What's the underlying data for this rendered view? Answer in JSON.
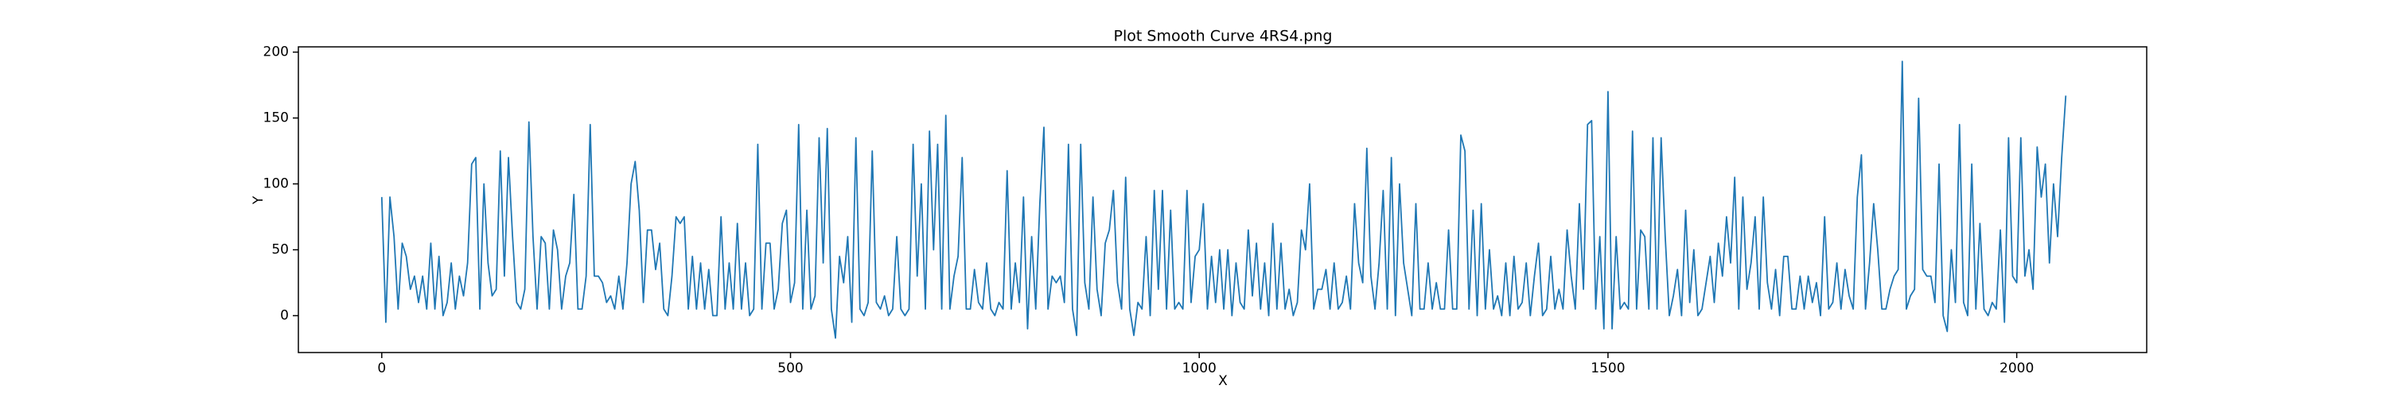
{
  "chart_data": {
    "type": "line",
    "title": "Plot Smooth Curve 4RS4.png",
    "x_label": "X",
    "y_label": "Y",
    "color": "#1f77b4",
    "xlim": [
      -102,
      2159
    ],
    "ylim": [
      -28,
      204
    ],
    "xticks": [
      0,
      500,
      1000,
      1500,
      2000
    ],
    "yticks": [
      0,
      50,
      100,
      150,
      200
    ],
    "x": [
      0,
      5,
      10,
      15,
      20,
      25,
      30,
      35,
      40,
      45,
      50,
      55,
      60,
      65,
      70,
      75,
      80,
      85,
      90,
      95,
      100,
      105,
      110,
      115,
      120,
      125,
      130,
      135,
      140,
      145,
      150,
      155,
      160,
      165,
      170,
      175,
      180,
      185,
      190,
      195,
      200,
      205,
      210,
      215,
      220,
      225,
      230,
      235,
      240,
      245,
      250,
      255,
      260,
      265,
      270,
      275,
      280,
      285,
      290,
      295,
      300,
      305,
      310,
      315,
      320,
      325,
      330,
      335,
      340,
      345,
      350,
      355,
      360,
      365,
      370,
      375,
      380,
      385,
      390,
      395,
      400,
      405,
      410,
      415,
      420,
      425,
      430,
      435,
      440,
      445,
      450,
      455,
      460,
      465,
      470,
      475,
      480,
      485,
      490,
      495,
      500,
      505,
      510,
      515,
      520,
      525,
      530,
      535,
      540,
      545,
      550,
      555,
      560,
      565,
      570,
      575,
      580,
      585,
      590,
      595,
      600,
      605,
      610,
      615,
      620,
      625,
      630,
      635,
      640,
      645,
      650,
      655,
      660,
      665,
      670,
      675,
      680,
      685,
      690,
      695,
      700,
      705,
      710,
      715,
      720,
      725,
      730,
      735,
      740,
      745,
      750,
      755,
      760,
      765,
      770,
      775,
      780,
      785,
      790,
      795,
      800,
      805,
      810,
      815,
      820,
      825,
      830,
      835,
      840,
      845,
      850,
      855,
      860,
      865,
      870,
      875,
      880,
      885,
      890,
      895,
      900,
      905,
      910,
      915,
      920,
      925,
      930,
      935,
      940,
      945,
      950,
      955,
      960,
      965,
      970,
      975,
      980,
      985,
      990,
      995,
      1000,
      1005,
      1010,
      1015,
      1020,
      1025,
      1030,
      1035,
      1040,
      1045,
      1050,
      1055,
      1060,
      1065,
      1070,
      1075,
      1080,
      1085,
      1090,
      1095,
      1100,
      1105,
      1110,
      1115,
      1120,
      1125,
      1130,
      1135,
      1140,
      1145,
      1150,
      1155,
      1160,
      1165,
      1170,
      1175,
      1180,
      1185,
      1190,
      1195,
      1200,
      1205,
      1210,
      1215,
      1220,
      1225,
      1230,
      1235,
      1240,
      1245,
      1250,
      1255,
      1260,
      1265,
      1270,
      1275,
      1280,
      1285,
      1290,
      1295,
      1300,
      1305,
      1310,
      1315,
      1320,
      1325,
      1330,
      1335,
      1340,
      1345,
      1350,
      1355,
      1360,
      1365,
      1370,
      1375,
      1380,
      1385,
      1390,
      1395,
      1400,
      1405,
      1410,
      1415,
      1420,
      1425,
      1430,
      1435,
      1440,
      1445,
      1450,
      1455,
      1460,
      1465,
      1470,
      1475,
      1480,
      1485,
      1490,
      1495,
      1500,
      1505,
      1510,
      1515,
      1520,
      1525,
      1530,
      1535,
      1540,
      1545,
      1550,
      1555,
      1560,
      1565,
      1570,
      1575,
      1580,
      1585,
      1590,
      1595,
      1600,
      1605,
      1610,
      1615,
      1620,
      1625,
      1630,
      1635,
      1640,
      1645,
      1650,
      1655,
      1660,
      1665,
      1670,
      1675,
      1680,
      1685,
      1690,
      1695,
      1700,
      1705,
      1710,
      1715,
      1720,
      1725,
      1730,
      1735,
      1740,
      1745,
      1750,
      1755,
      1760,
      1765,
      1770,
      1775,
      1780,
      1785,
      1790,
      1795,
      1800,
      1805,
      1810,
      1815,
      1820,
      1825,
      1830,
      1835,
      1840,
      1845,
      1850,
      1855,
      1860,
      1865,
      1870,
      1875,
      1880,
      1885,
      1890,
      1895,
      1900,
      1905,
      1910,
      1915,
      1920,
      1925,
      1930,
      1935,
      1940,
      1945,
      1950,
      1955,
      1960,
      1965,
      1970,
      1975,
      1980,
      1985,
      1990,
      1995,
      2000,
      2005,
      2010,
      2015,
      2020,
      2025,
      2030,
      2035,
      2040,
      2045,
      2050,
      2055,
      2060
    ],
    "values": [
      90,
      -5,
      90,
      60,
      5,
      55,
      45,
      20,
      30,
      10,
      30,
      5,
      55,
      5,
      45,
      0,
      10,
      40,
      5,
      30,
      15,
      40,
      115,
      120,
      5,
      100,
      40,
      15,
      20,
      125,
      30,
      120,
      60,
      10,
      5,
      20,
      147,
      60,
      5,
      60,
      55,
      5,
      65,
      50,
      5,
      30,
      40,
      92,
      5,
      5,
      30,
      145,
      30,
      30,
      25,
      10,
      15,
      5,
      30,
      5,
      40,
      100,
      117,
      80,
      10,
      65,
      65,
      35,
      55,
      5,
      0,
      30,
      75,
      70,
      75,
      5,
      45,
      5,
      40,
      5,
      35,
      0,
      0,
      75,
      5,
      40,
      5,
      70,
      5,
      40,
      0,
      5,
      130,
      5,
      55,
      55,
      5,
      20,
      70,
      80,
      10,
      25,
      145,
      5,
      80,
      5,
      15,
      135,
      40,
      142,
      5,
      -17,
      45,
      25,
      60,
      -5,
      135,
      5,
      0,
      10,
      125,
      10,
      5,
      15,
      0,
      5,
      60,
      5,
      0,
      5,
      130,
      30,
      100,
      5,
      140,
      50,
      130,
      5,
      152,
      5,
      30,
      45,
      120,
      5,
      5,
      35,
      10,
      5,
      40,
      5,
      0,
      10,
      5,
      110,
      5,
      40,
      10,
      90,
      -10,
      60,
      5,
      85,
      143,
      5,
      30,
      25,
      30,
      10,
      130,
      5,
      -15,
      130,
      25,
      5,
      90,
      20,
      0,
      55,
      65,
      95,
      25,
      5,
      105,
      5,
      -15,
      10,
      5,
      60,
      0,
      95,
      20,
      95,
      5,
      80,
      5,
      10,
      5,
      95,
      10,
      45,
      50,
      85,
      5,
      45,
      10,
      50,
      5,
      50,
      0,
      40,
      10,
      5,
      65,
      15,
      55,
      5,
      40,
      0,
      70,
      5,
      55,
      5,
      20,
      0,
      10,
      65,
      50,
      100,
      5,
      20,
      20,
      35,
      5,
      40,
      5,
      10,
      30,
      5,
      85,
      40,
      25,
      127,
      30,
      5,
      40,
      95,
      5,
      120,
      0,
      100,
      40,
      20,
      0,
      85,
      5,
      5,
      40,
      5,
      25,
      5,
      5,
      65,
      5,
      5,
      137,
      125,
      5,
      80,
      0,
      85,
      5,
      50,
      5,
      15,
      0,
      40,
      0,
      45,
      5,
      10,
      40,
      0,
      30,
      55,
      0,
      5,
      45,
      5,
      20,
      5,
      65,
      30,
      5,
      85,
      20,
      145,
      148,
      5,
      60,
      -10,
      170,
      -10,
      60,
      5,
      10,
      5,
      140,
      5,
      65,
      60,
      5,
      135,
      5,
      135,
      60,
      0,
      15,
      35,
      0,
      80,
      10,
      50,
      0,
      5,
      25,
      45,
      10,
      55,
      30,
      75,
      40,
      105,
      5,
      90,
      20,
      40,
      75,
      5,
      90,
      25,
      5,
      35,
      0,
      45,
      45,
      5,
      5,
      30,
      5,
      30,
      10,
      25,
      0,
      75,
      5,
      10,
      40,
      5,
      35,
      15,
      5,
      90,
      122,
      5,
      40,
      85,
      50,
      5,
      5,
      20,
      30,
      35,
      193,
      5,
      15,
      20,
      165,
      35,
      30,
      30,
      10,
      115,
      0,
      -12,
      50,
      10,
      145,
      10,
      0,
      115,
      5,
      70,
      5,
      0,
      10,
      5,
      65,
      -5,
      135,
      30,
      25,
      135,
      30,
      50,
      20,
      128,
      90,
      115,
      40,
      100,
      60,
      120,
      167
    ]
  }
}
